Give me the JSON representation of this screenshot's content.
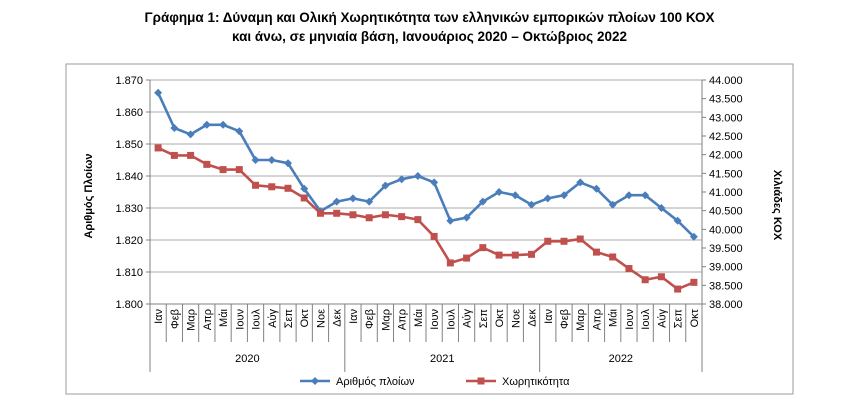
{
  "title_line1": "Γράφημα 1: Δύναμη και Ολική Χωρητικότητα των ελληνικών εμπορικών πλοίων 100 ΚΟΧ",
  "title_line2": "και άνω, σε μηνιαία βάση, Ιανουάριος 2020 – Οκτώβριος 2022",
  "chart_data": {
    "type": "line",
    "title": "Γράφημα 1: Δύναμη και Ολική Χωρητικότητα των ελληνικών εμπορικών πλοίων 100 ΚΟΧ και άνω, σε μηνιαία βάση, Ιανουάριος 2020 – Οκτώβριος 2022",
    "categories": [
      "Ιαν",
      "Φεβ",
      "Μαρ",
      "Απρ",
      "Μάι",
      "Ιουν",
      "Ιουλ",
      "Αύγ",
      "Σεπ",
      "Οκτ",
      "Νοε",
      "Δεκ",
      "Ιαν",
      "Φεβ",
      "Μαρ",
      "Απρ",
      "Μάι",
      "Ιουν",
      "Ιουλ",
      "Αύγ",
      "Σεπ",
      "Οκτ",
      "Νοε",
      "Δεκ",
      "Ιαν",
      "Φεβ",
      "Μαρ",
      "Απρ",
      "Μάι",
      "Ιουν",
      "Ιουλ",
      "Αύγ",
      "Σεπ",
      "Οκτ"
    ],
    "years": [
      {
        "label": "2020",
        "count": 12
      },
      {
        "label": "2021",
        "count": 12
      },
      {
        "label": "2022",
        "count": 10
      }
    ],
    "ylabel_left": "Αριθμός Πλοίων",
    "ylabel_right": "Χιλιάδες ΚΟΧ",
    "ylim_left": [
      1800,
      1870
    ],
    "yticks_left": [
      "1.800",
      "1.810",
      "1.820",
      "1.830",
      "1.840",
      "1.850",
      "1.860",
      "1.870"
    ],
    "ylim_right": [
      38000,
      44000
    ],
    "yticks_right": [
      "38.000",
      "38.500",
      "39.000",
      "39.500",
      "40.000",
      "40.500",
      "41.000",
      "41.500",
      "42.000",
      "42.500",
      "43.000",
      "43.500",
      "44.000"
    ],
    "grid": true,
    "legend_position": "bottom",
    "series": [
      {
        "name": "Αριθμός πλοίων",
        "axis": "left",
        "color": "#4a7ebb",
        "marker": "diamond",
        "values": [
          1866,
          1855,
          1853,
          1856,
          1856,
          1854,
          1845,
          1845,
          1844,
          1836,
          1829,
          1832,
          1833,
          1832,
          1837,
          1839,
          1840,
          1838,
          1826,
          1827,
          1832,
          1835,
          1834,
          1831,
          1833,
          1834,
          1838,
          1836,
          1831,
          1834,
          1834,
          1830,
          1826,
          1821
        ]
      },
      {
        "name": "Χωρητικότητα",
        "axis": "right",
        "color": "#c0504d",
        "marker": "square",
        "values": [
          42180,
          41980,
          41980,
          41740,
          41600,
          41600,
          41180,
          41140,
          41100,
          40840,
          40430,
          40430,
          40390,
          40310,
          40390,
          40340,
          40260,
          39810,
          39100,
          39230,
          39510,
          39310,
          39310,
          39330,
          39680,
          39680,
          39740,
          39390,
          39260,
          38950,
          38650,
          38730,
          38400,
          38580
        ]
      }
    ]
  }
}
